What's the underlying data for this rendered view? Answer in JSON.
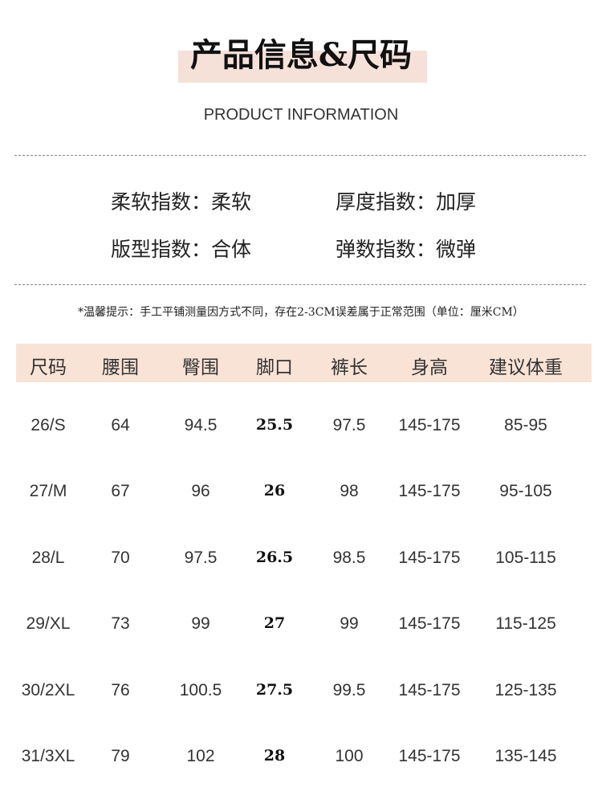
{
  "header": {
    "title": "产品信息&尺码",
    "subtitle": "PRODUCT INFORMATION",
    "accent_color": "#f6e1d9"
  },
  "attributes": [
    {
      "label": "柔软指数：",
      "value": "柔软"
    },
    {
      "label": "厚度指数：",
      "value": "加厚"
    },
    {
      "label": "版型指数：",
      "value": "合体"
    },
    {
      "label": "弹数指数：",
      "value": "微弹"
    }
  ],
  "note": "*温馨提示：手工平铺测量因方式不同，存在2-3CM误差属于正常范围（单位：厘米CM）",
  "table": {
    "headers": [
      "尺码",
      "腰围",
      "臀围",
      "脚口",
      "裤长",
      "身高",
      "建议体重"
    ],
    "rows": [
      [
        "26/S",
        "64",
        "94.5",
        "25.5",
        "97.5",
        "145-175",
        "85-95"
      ],
      [
        "27/M",
        "67",
        "96",
        "26",
        "98",
        "145-175",
        "95-105"
      ],
      [
        "28/L",
        "70",
        "97.5",
        "26.5",
        "98.5",
        "145-175",
        "105-115"
      ],
      [
        "29/XL",
        "73",
        "99",
        "27",
        "99",
        "145-175",
        "115-125"
      ],
      [
        "30/2XL",
        "76",
        "100.5",
        "27.5",
        "99.5",
        "145-175",
        "125-135"
      ],
      [
        "31/3XL",
        "79",
        "102",
        "28",
        "100",
        "145-175",
        "135-145"
      ]
    ],
    "header_color": "#f9e3d6"
  }
}
